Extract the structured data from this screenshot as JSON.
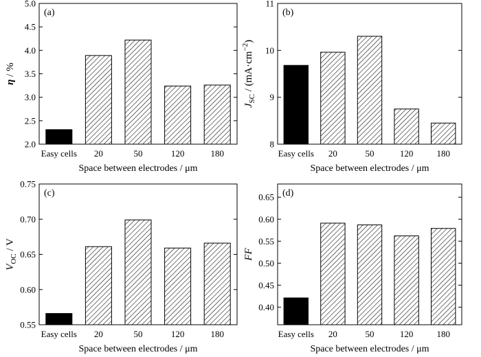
{
  "chart_data": [
    {
      "type": "bar",
      "panel_label": "(a)",
      "ylabel_parts": [
        {
          "text": "η",
          "style": "bold-italic"
        },
        {
          "text": " / %",
          "style": "normal"
        }
      ],
      "xlabel": "Space between electrodes / μm",
      "categories": [
        "Easy cells",
        "20",
        "50",
        "120",
        "180"
      ],
      "values": [
        2.31,
        3.89,
        4.22,
        3.24,
        3.26
      ],
      "ylim": [
        2.0,
        5.0
      ],
      "yticks": [
        2.0,
        2.5,
        3.0,
        3.5,
        4.0,
        4.5,
        5.0
      ],
      "ytick_labels": [
        "2.0",
        "2.5",
        "3.0",
        "3.5",
        "4.0",
        "4.5",
        "5.0"
      ],
      "bar_fills": [
        "solid",
        "hatched",
        "hatched",
        "hatched",
        "hatched"
      ]
    },
    {
      "type": "bar",
      "panel_label": "(b)",
      "ylabel_parts": [
        {
          "text": "J",
          "style": "italic"
        },
        {
          "text": "SC",
          "style": "sub"
        },
        {
          "text": " / (mA·cm",
          "style": "normal"
        },
        {
          "text": "−2",
          "style": "sup"
        },
        {
          "text": ")",
          "style": "normal"
        }
      ],
      "xlabel": "Space between electrodes / μm",
      "categories": [
        "Easy cells",
        "20",
        "50",
        "120",
        "180"
      ],
      "values": [
        9.68,
        9.96,
        10.3,
        8.75,
        8.45
      ],
      "ylim": [
        8,
        11
      ],
      "yticks": [
        8,
        9,
        10,
        11
      ],
      "ytick_labels": [
        "8",
        "9",
        "10",
        "11"
      ],
      "bar_fills": [
        "solid",
        "hatched",
        "hatched",
        "hatched",
        "hatched"
      ]
    },
    {
      "type": "bar",
      "panel_label": "(c)",
      "ylabel_parts": [
        {
          "text": "V",
          "style": "italic"
        },
        {
          "text": "OC",
          "style": "sub"
        },
        {
          "text": " / V",
          "style": "normal"
        }
      ],
      "xlabel": "Space between electrodes / μm",
      "categories": [
        "Easy cells",
        "20",
        "50",
        "120",
        "180"
      ],
      "values": [
        0.566,
        0.661,
        0.699,
        0.659,
        0.666
      ],
      "ylim": [
        0.55,
        0.75
      ],
      "yticks": [
        0.55,
        0.6,
        0.65,
        0.7,
        0.75
      ],
      "ytick_labels": [
        "0.55",
        "0.60",
        "0.65",
        "0.70",
        "0.75"
      ],
      "bar_fills": [
        "solid",
        "hatched",
        "hatched",
        "hatched",
        "hatched"
      ]
    },
    {
      "type": "bar",
      "panel_label": "(d)",
      "ylabel_parts": [
        {
          "text": "FF",
          "style": "italic"
        }
      ],
      "xlabel": "Space between electrodes / μm",
      "categories": [
        "Easy cells",
        "20",
        "50",
        "120",
        "180"
      ],
      "values": [
        0.421,
        0.591,
        0.587,
        0.562,
        0.579
      ],
      "ylim": [
        0.36,
        0.68
      ],
      "yticks": [
        0.4,
        0.45,
        0.5,
        0.55,
        0.6,
        0.65
      ],
      "ytick_labels": [
        "0.40",
        "0.45",
        "0.50",
        "0.55",
        "0.60",
        "0.65"
      ],
      "bar_fills": [
        "solid",
        "hatched",
        "hatched",
        "hatched",
        "hatched"
      ]
    }
  ],
  "colors": {
    "axis": "#000000",
    "solid_bar": "#000000",
    "hatched_bar_fill": "#ffffff",
    "hatch_line": "#000000",
    "background": "#ffffff"
  }
}
